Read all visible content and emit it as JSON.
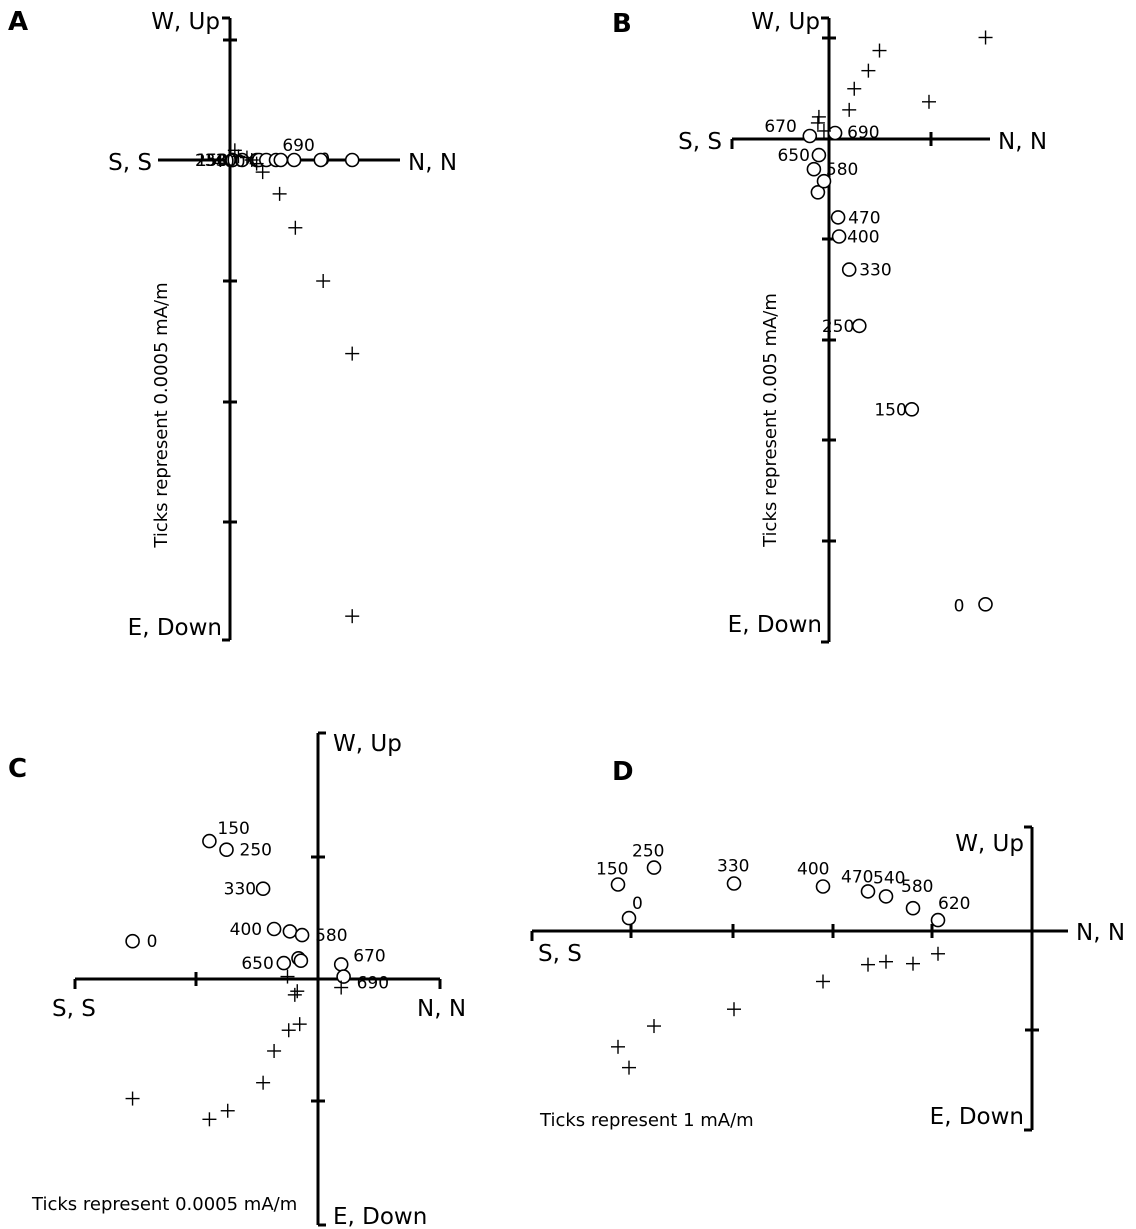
{
  "chart_data": [
    {
      "type": "scatter",
      "panel": "A",
      "tick_note": "Ticks represent 0.0005 mA/m",
      "axis_labels": {
        "top": "W, Up",
        "bottom": "E, Down",
        "left": "S, S",
        "right": "N, N"
      },
      "horizontal": {
        "x": [
          1.01,
          0.02,
          0.02,
          0.1,
          0.22,
          0.24,
          0.3,
          0.38,
          0.42,
          0.53,
          0.75
        ],
        "labels": [
          "0",
          "150",
          "250",
          "330",
          "400",
          "",
          "",
          "",
          "",
          "",
          "690"
        ]
      },
      "vertical": {
        "x": [
          1.01,
          1.01,
          0.77,
          0.54,
          0.41,
          0.27,
          0.22,
          0.18,
          0.14,
          0.07,
          0.04
        ],
        "y": [
          -3.77,
          -1.6,
          -1.0,
          -0.56,
          -0.28,
          -0.1,
          -0.03,
          0.0,
          0.02,
          0.03,
          0.08
        ]
      }
    },
    {
      "type": "scatter",
      "panel": "B",
      "tick_note": "Ticks represent 0.005 mA/m",
      "axis_labels": {
        "top": "W, Up",
        "bottom": "E, Down",
        "left": "S, S",
        "right": "N, N"
      },
      "horizontal": {
        "x": [
          1.55,
          0.82,
          0.3,
          0.2,
          0.1,
          0.09,
          -0.11,
          -0.15,
          -0.05,
          -0.1,
          -0.19,
          0.06
        ],
        "y": [
          -4.63,
          -2.69,
          -1.86,
          -1.3,
          -0.97,
          -0.78,
          -0.53,
          -0.3,
          -0.42,
          -0.16,
          0.03,
          0.06
        ],
        "labels": [
          "0",
          "150",
          "250",
          "330",
          "400",
          "470",
          "",
          "580",
          "",
          "650",
          "670",
          "690"
        ]
      },
      "vertical": {
        "x": [
          1.55,
          0.99,
          0.5,
          0.39,
          0.25,
          0.2,
          -0.05,
          -0.1,
          -0.11
        ],
        "y": [
          1.01,
          0.37,
          0.88,
          0.68,
          0.5,
          0.29,
          0.08,
          0.22,
          0.16
        ]
      }
    },
    {
      "type": "scatter",
      "panel": "C",
      "tick_note": "Ticks represent 0.0005 mA/m",
      "axis_labels": {
        "top": "W, Up",
        "bottom": "E, Down",
        "left": "S, S",
        "right": "N, N"
      },
      "horizontal": {
        "x": [
          -1.52,
          -0.89,
          -0.75,
          -0.45,
          -0.36,
          -0.23,
          -0.13,
          -0.16,
          -0.28,
          -0.14,
          0.19,
          0.21
        ],
        "y": [
          0.31,
          1.13,
          1.06,
          0.74,
          0.41,
          0.39,
          0.36,
          0.17,
          0.13,
          0.15,
          0.12,
          0.02
        ],
        "labels": [
          "0",
          "150",
          "250",
          "330",
          "400",
          "",
          "580",
          "",
          "650",
          "",
          "670",
          "690"
        ]
      },
      "vertical": {
        "x": [
          -1.52,
          -0.89,
          -0.74,
          -0.45,
          -0.36,
          -0.24,
          -0.15,
          -0.17,
          -0.19,
          -0.25,
          0.19
        ],
        "y": [
          -0.98,
          -1.15,
          -1.08,
          -0.85,
          -0.59,
          -0.42,
          -0.37,
          -0.1,
          -0.13,
          0.02,
          -0.07
        ]
      }
    },
    {
      "type": "scatter",
      "panel": "D",
      "tick_note": "Ticks represent 1 mA/m",
      "axis_labels": {
        "top": "W, Up",
        "bottom": "E, Down",
        "left": "S, S",
        "right": "N, N"
      },
      "horizontal": {
        "x": [
          -4.03,
          -4.14,
          -3.78,
          -2.98,
          -2.09,
          -1.64,
          -1.46,
          -1.19,
          -0.94
        ],
        "y": [
          0.13,
          0.47,
          0.64,
          0.48,
          0.45,
          0.4,
          0.35,
          0.23,
          0.11
        ],
        "labels": [
          "0",
          "150",
          "250",
          "330",
          "400",
          "470",
          "540",
          "580",
          "620"
        ]
      },
      "vertical": {
        "x": [
          -4.03,
          -4.14,
          -3.78,
          -2.98,
          -2.09,
          -1.64,
          -1.46,
          -1.19,
          -0.94
        ],
        "y": [
          -1.38,
          -1.17,
          -0.96,
          -0.79,
          -0.51,
          -0.34,
          -0.31,
          -0.33,
          -0.23
        ]
      }
    }
  ]
}
